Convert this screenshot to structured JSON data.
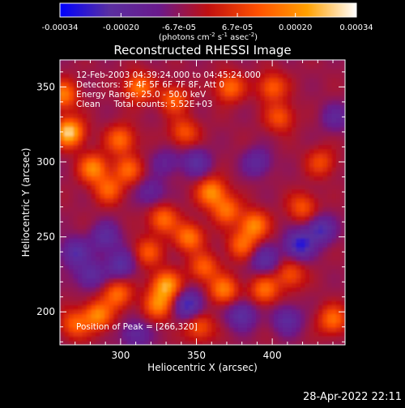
{
  "chart_data": {
    "type": "heatmap",
    "title": "Reconstructed RHESSI Image",
    "xlabel": "Heliocentric X (arcsec)",
    "ylabel": "Heliocentric Y (arcsec)",
    "xlim": [
      260,
      448
    ],
    "ylim": [
      178,
      368
    ],
    "x_ticks": [
      300,
      350,
      400
    ],
    "y_ticks": [
      200,
      250,
      300,
      350
    ],
    "colorbar": {
      "ticks": [
        -0.00034,
        -0.0002,
        -6.7e-05,
        6.7e-05,
        0.0002,
        0.00034
      ],
      "tick_labels": [
        "-0.00034",
        "-0.00020",
        "-6.7e-05",
        "6.7e-05",
        "0.00020",
        "0.00034"
      ],
      "label": "(photons cm-2 s-1 asec-2)",
      "range": [
        -0.00034,
        0.00034
      ],
      "colors": [
        "#0000ff",
        "#5a2fa0",
        "#6a1a8c",
        "#c01010",
        "#ff5000",
        "#ffa000",
        "#ffffff"
      ]
    },
    "annotations": {
      "line1": "12-Feb-2003 04:39:24.000 to 04:45:24.000",
      "line2": "Detectors: 3F 4F 5F 6F 7F 8F, Att 0",
      "line3": "Energy Range: 25.0 - 50.0 keV",
      "line4": "Clean     Total counts: 5.52E+03",
      "peak": "Position of Peak = [266,320]"
    },
    "sources": [
      {
        "x": 266,
        "y": 320,
        "value": 0.00034
      },
      {
        "x": 262,
        "y": 345,
        "value": 0.00022
      },
      {
        "x": 282,
        "y": 296,
        "value": 0.00024
      },
      {
        "x": 292,
        "y": 282,
        "value": 0.00018
      },
      {
        "x": 300,
        "y": 315,
        "value": 0.0002
      },
      {
        "x": 312,
        "y": 350,
        "value": 0.00022
      },
      {
        "x": 335,
        "y": 342,
        "value": 0.00018
      },
      {
        "x": 342,
        "y": 320,
        "value": 0.00016
      },
      {
        "x": 372,
        "y": 350,
        "value": 0.0002
      },
      {
        "x": 400,
        "y": 350,
        "value": 0.00018
      },
      {
        "x": 405,
        "y": 330,
        "value": 0.00016
      },
      {
        "x": 305,
        "y": 295,
        "value": 0.00018
      },
      {
        "x": 328,
        "y": 262,
        "value": 0.0002
      },
      {
        "x": 345,
        "y": 250,
        "value": 0.00022
      },
      {
        "x": 360,
        "y": 280,
        "value": 0.00025
      },
      {
        "x": 370,
        "y": 268,
        "value": 0.0002
      },
      {
        "x": 380,
        "y": 245,
        "value": 0.00018
      },
      {
        "x": 388,
        "y": 258,
        "value": 0.00024
      },
      {
        "x": 318,
        "y": 240,
        "value": 0.00016
      },
      {
        "x": 325,
        "y": 205,
        "value": 0.00022
      },
      {
        "x": 330,
        "y": 218,
        "value": 0.00028
      },
      {
        "x": 355,
        "y": 230,
        "value": 0.00018
      },
      {
        "x": 368,
        "y": 215,
        "value": 0.00022
      },
      {
        "x": 298,
        "y": 212,
        "value": 0.0002
      },
      {
        "x": 285,
        "y": 198,
        "value": 0.00024
      },
      {
        "x": 270,
        "y": 192,
        "value": 0.00018
      },
      {
        "x": 395,
        "y": 215,
        "value": 0.0002
      },
      {
        "x": 412,
        "y": 225,
        "value": 0.00016
      },
      {
        "x": 420,
        "y": 270,
        "value": 0.00016
      },
      {
        "x": 440,
        "y": 195,
        "value": 0.0002
      },
      {
        "x": 432,
        "y": 300,
        "value": 0.00014
      },
      {
        "x": 352,
        "y": 190,
        "value": 0.00016
      },
      {
        "x": 270,
        "y": 240,
        "value": -0.00018
      },
      {
        "x": 290,
        "y": 250,
        "value": -0.00016
      },
      {
        "x": 300,
        "y": 232,
        "value": -0.00018
      },
      {
        "x": 280,
        "y": 225,
        "value": -0.00016
      },
      {
        "x": 345,
        "y": 205,
        "value": -0.00022
      },
      {
        "x": 395,
        "y": 235,
        "value": -0.00016
      },
      {
        "x": 418,
        "y": 245,
        "value": -0.00024
      },
      {
        "x": 432,
        "y": 255,
        "value": -0.0002
      },
      {
        "x": 380,
        "y": 198,
        "value": -0.00018
      },
      {
        "x": 410,
        "y": 195,
        "value": -0.00016
      },
      {
        "x": 350,
        "y": 300,
        "value": -0.00016
      },
      {
        "x": 390,
        "y": 300,
        "value": -0.00014
      },
      {
        "x": 320,
        "y": 280,
        "value": -0.00012
      },
      {
        "x": 310,
        "y": 185,
        "value": -0.00014
      },
      {
        "x": 442,
        "y": 330,
        "value": -0.00012
      },
      {
        "x": 330,
        "y": 300,
        "value": -0.0001
      }
    ]
  },
  "footer": {
    "date": "28-Apr-2022 22:11"
  }
}
